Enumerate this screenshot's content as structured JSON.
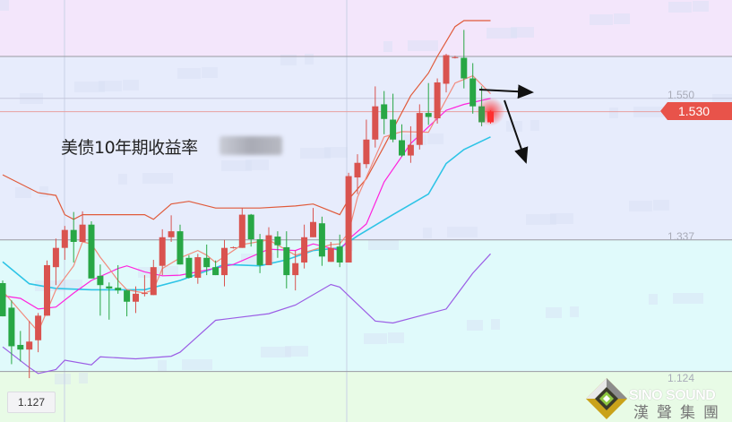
{
  "title": "美债10年期收益率",
  "current_price_label": "1.530",
  "crosshair_price_label": "1.127",
  "logo": {
    "en": "SINO SOUND",
    "zh": "漢聲集團"
  },
  "colors": {
    "up": "#d9534f",
    "down": "#28a745",
    "upper_band": "#e05a3a",
    "lower_band": "#9b5de5",
    "ma_fast": "#f28b7d",
    "ma_mid": "#ff22dd",
    "ma_slow": "#2ec4e6",
    "price_tag": "#e8534a"
  },
  "chart_data": {
    "type": "candlestick",
    "ylim": [
      1.063,
      1.698
    ],
    "y_ticks": [
      {
        "value": 1.55,
        "label": "1.550"
      },
      {
        "value": 1.337,
        "label": "1.337"
      },
      {
        "value": 1.124,
        "label": "1.124"
      }
    ],
    "zones": [
      {
        "from": 1.613,
        "to": 1.698,
        "color": "#f3e6fb"
      },
      {
        "from": 1.337,
        "to": 1.613,
        "color": "#e7ecfc"
      },
      {
        "from": 1.139,
        "to": 1.337,
        "color": "#e0fafb"
      },
      {
        "from": 1.063,
        "to": 1.139,
        "color": "#e8fbe6"
      }
    ],
    "level_lines": [
      1.613,
      1.55,
      1.337,
      1.139
    ],
    "current_price": 1.53,
    "candles_ohlc": [
      [
        1.272,
        1.276,
        1.222,
        1.222
      ],
      [
        1.235,
        1.246,
        1.15,
        1.177
      ],
      [
        1.179,
        1.2,
        1.154,
        1.172
      ],
      [
        1.172,
        1.215,
        1.129,
        1.184
      ],
      [
        1.186,
        1.227,
        1.168,
        1.223
      ],
      [
        1.223,
        1.306,
        1.223,
        1.299
      ],
      [
        1.296,
        1.339,
        1.269,
        1.325
      ],
      [
        1.325,
        1.358,
        1.307,
        1.352
      ],
      [
        1.352,
        1.379,
        1.303,
        1.334
      ],
      [
        1.334,
        1.38,
        1.334,
        1.36
      ],
      [
        1.36,
        1.365,
        1.279,
        1.279
      ],
      [
        1.283,
        1.3,
        1.223,
        1.269
      ],
      [
        1.267,
        1.273,
        1.217,
        1.264
      ],
      [
        1.265,
        1.299,
        1.256,
        1.261
      ],
      [
        1.261,
        1.262,
        1.222,
        1.244
      ],
      [
        1.244,
        1.267,
        1.227,
        1.256
      ],
      [
        1.257,
        1.284,
        1.252,
        1.257
      ],
      [
        1.254,
        1.307,
        1.254,
        1.296
      ],
      [
        1.298,
        1.353,
        1.284,
        1.341
      ],
      [
        1.341,
        1.374,
        1.334,
        1.35
      ],
      [
        1.35,
        1.36,
        1.3,
        1.3
      ],
      [
        1.31,
        1.314,
        1.279,
        1.28
      ],
      [
        1.28,
        1.316,
        1.271,
        1.311
      ],
      [
        1.31,
        1.33,
        1.284,
        1.296
      ],
      [
        1.296,
        1.306,
        1.284,
        1.284
      ],
      [
        1.284,
        1.337,
        1.267,
        1.325
      ],
      [
        1.325,
        1.327,
        1.324,
        1.326
      ],
      [
        1.325,
        1.385,
        1.325,
        1.375
      ],
      [
        1.375,
        1.376,
        1.327,
        1.338
      ],
      [
        1.338,
        1.346,
        1.287,
        1.299
      ],
      [
        1.299,
        1.356,
        1.299,
        1.344
      ],
      [
        1.342,
        1.35,
        1.31,
        1.329
      ],
      [
        1.326,
        1.35,
        1.264,
        1.284
      ],
      [
        1.284,
        1.321,
        1.261,
        1.302
      ],
      [
        1.303,
        1.36,
        1.294,
        1.341
      ],
      [
        1.341,
        1.385,
        1.341,
        1.364
      ],
      [
        1.362,
        1.372,
        1.298,
        1.312
      ],
      [
        1.304,
        1.334,
        1.304,
        1.325
      ],
      [
        1.327,
        1.345,
        1.296,
        1.303
      ],
      [
        1.303,
        1.438,
        1.303,
        1.433
      ],
      [
        1.431,
        1.466,
        1.406,
        1.453
      ],
      [
        1.451,
        1.518,
        1.445,
        1.488
      ],
      [
        1.488,
        1.568,
        1.476,
        1.538
      ],
      [
        1.541,
        1.561,
        1.496,
        1.519
      ],
      [
        1.518,
        1.557,
        1.484,
        1.488
      ],
      [
        1.487,
        1.511,
        1.462,
        1.464
      ],
      [
        1.464,
        1.508,
        1.453,
        1.48
      ],
      [
        1.48,
        1.541,
        1.473,
        1.528
      ],
      [
        1.528,
        1.573,
        1.51,
        1.522
      ],
      [
        1.52,
        1.58,
        1.512,
        1.574
      ],
      [
        1.572,
        1.617,
        1.559,
        1.615
      ],
      [
        1.612,
        1.614,
        1.61,
        1.612
      ],
      [
        1.611,
        1.653,
        1.565,
        1.58
      ],
      [
        1.58,
        1.603,
        1.527,
        1.538
      ],
      [
        1.538,
        1.568,
        1.508,
        1.514
      ],
      [
        1.514,
        1.532,
        1.512,
        1.53
      ]
    ],
    "lines": [
      {
        "key": "upper_band",
        "points": [
          [
            0,
            1.435
          ],
          [
            4,
            1.408
          ],
          [
            6,
            1.404
          ],
          [
            7,
            1.375
          ],
          [
            8,
            1.368
          ],
          [
            9,
            1.375
          ],
          [
            16,
            1.375
          ],
          [
            17,
            1.368
          ],
          [
            19,
            1.391
          ],
          [
            21,
            1.395
          ],
          [
            24,
            1.385
          ],
          [
            29,
            1.385
          ],
          [
            33,
            1.388
          ],
          [
            35,
            1.391
          ],
          [
            38,
            1.375
          ],
          [
            39,
            1.398
          ],
          [
            41,
            1.429
          ],
          [
            43,
            1.478
          ],
          [
            46,
            1.554
          ],
          [
            48,
            1.588
          ],
          [
            49,
            1.613
          ],
          [
            51,
            1.658
          ],
          [
            52,
            1.667
          ],
          [
            55,
            1.667
          ]
        ]
      },
      {
        "key": "lower_band",
        "points": [
          [
            0,
            1.176
          ],
          [
            3,
            1.145
          ],
          [
            4,
            1.136
          ],
          [
            6,
            1.142
          ],
          [
            7,
            1.156
          ],
          [
            10,
            1.149
          ],
          [
            11,
            1.161
          ],
          [
            15,
            1.158
          ],
          [
            19,
            1.162
          ],
          [
            20,
            1.168
          ],
          [
            24,
            1.216
          ],
          [
            30,
            1.226
          ],
          [
            33,
            1.239
          ],
          [
            37,
            1.27
          ],
          [
            38,
            1.266
          ],
          [
            39,
            1.253
          ],
          [
            42,
            1.215
          ],
          [
            44,
            1.212
          ],
          [
            48,
            1.226
          ],
          [
            50,
            1.233
          ],
          [
            53,
            1.287
          ],
          [
            55,
            1.316
          ]
        ]
      },
      {
        "key": "ma_slow",
        "points": [
          [
            0,
            1.304
          ],
          [
            3,
            1.271
          ],
          [
            6,
            1.264
          ],
          [
            10,
            1.262
          ],
          [
            16,
            1.262
          ],
          [
            20,
            1.276
          ],
          [
            25,
            1.3
          ],
          [
            29,
            1.298
          ],
          [
            32,
            1.307
          ],
          [
            35,
            1.321
          ],
          [
            38,
            1.325
          ],
          [
            40,
            1.343
          ],
          [
            44,
            1.375
          ],
          [
            48,
            1.406
          ],
          [
            50,
            1.452
          ],
          [
            52,
            1.473
          ],
          [
            55,
            1.492
          ]
        ]
      },
      {
        "key": "ma_mid",
        "points": [
          [
            0,
            1.253
          ],
          [
            2,
            1.249
          ],
          [
            4,
            1.233
          ],
          [
            6,
            1.236
          ],
          [
            8,
            1.257
          ],
          [
            10,
            1.276
          ],
          [
            13,
            1.294
          ],
          [
            14,
            1.298
          ],
          [
            16,
            1.289
          ],
          [
            18,
            1.283
          ],
          [
            20,
            1.284
          ],
          [
            22,
            1.289
          ],
          [
            26,
            1.3
          ],
          [
            30,
            1.323
          ],
          [
            33,
            1.321
          ],
          [
            35,
            1.331
          ],
          [
            38,
            1.321
          ],
          [
            39,
            1.338
          ],
          [
            41,
            1.361
          ],
          [
            43,
            1.424
          ],
          [
            46,
            1.482
          ],
          [
            50,
            1.532
          ],
          [
            52,
            1.541
          ],
          [
            55,
            1.55
          ]
        ]
      },
      {
        "key": "ma_fast",
        "points": [
          [
            0,
            1.26
          ],
          [
            4,
            1.199
          ],
          [
            5,
            1.23
          ],
          [
            6,
            1.262
          ],
          [
            8,
            1.298
          ],
          [
            9,
            1.334
          ],
          [
            10,
            1.331
          ],
          [
            11,
            1.311
          ],
          [
            12,
            1.294
          ],
          [
            13,
            1.276
          ],
          [
            14,
            1.262
          ],
          [
            16,
            1.257
          ],
          [
            17,
            1.262
          ],
          [
            18,
            1.294
          ],
          [
            20,
            1.31
          ],
          [
            22,
            1.321
          ],
          [
            23,
            1.314
          ],
          [
            24,
            1.303
          ],
          [
            27,
            1.33
          ],
          [
            30,
            1.337
          ],
          [
            33,
            1.314
          ],
          [
            37,
            1.33
          ],
          [
            38,
            1.331
          ],
          [
            39,
            1.348
          ],
          [
            40,
            1.401
          ],
          [
            43,
            1.492
          ],
          [
            45,
            1.5
          ],
          [
            48,
            1.499
          ],
          [
            51,
            1.573
          ],
          [
            53,
            1.584
          ],
          [
            55,
            1.557
          ]
        ]
      }
    ],
    "annotations": [
      {
        "type": "arrow",
        "direction": "right"
      },
      {
        "type": "arrow",
        "direction": "down"
      }
    ]
  }
}
